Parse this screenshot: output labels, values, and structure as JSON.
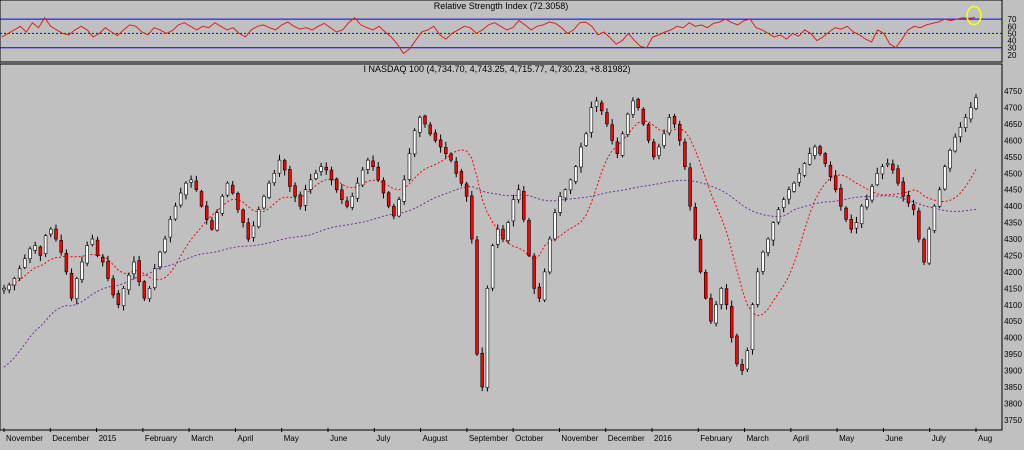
{
  "chart_data": [
    {
      "type": "line",
      "title": "Relative Strength Index (72.3058)",
      "series_name": "RSI",
      "ylim": [
        10,
        80
      ],
      "yticks": [
        "70",
        "60",
        "50",
        "40",
        "30",
        "20"
      ],
      "reference_levels": [
        70,
        30
      ],
      "midline": 50,
      "current_value": 72.3058,
      "color": "#e02020",
      "highlight_color": "#ffff00",
      "values": [
        45,
        50,
        55,
        60,
        52,
        65,
        58,
        72,
        60,
        55,
        50,
        48,
        55,
        60,
        55,
        45,
        50,
        58,
        52,
        47,
        55,
        62,
        60,
        52,
        48,
        58,
        55,
        50,
        54,
        62,
        65,
        60,
        55,
        60,
        58,
        65,
        60,
        55,
        58,
        50,
        45,
        55,
        60,
        62,
        58,
        55,
        62,
        66,
        60,
        56,
        58,
        55,
        60,
        64,
        58,
        52,
        55,
        65,
        72,
        62,
        58,
        55,
        60,
        52,
        45,
        35,
        22,
        28,
        40,
        52,
        55,
        60,
        48,
        42,
        50,
        55,
        60,
        58,
        50,
        55,
        62,
        65,
        60,
        55,
        58,
        68,
        62,
        55,
        60,
        62,
        66,
        64,
        58,
        50,
        55,
        65,
        66,
        60,
        48,
        52,
        44,
        35,
        40,
        50,
        40,
        32,
        30,
        45,
        48,
        52,
        55,
        60,
        58,
        65,
        60,
        62,
        58,
        64,
        66,
        70,
        65,
        62,
        68,
        70,
        58,
        55,
        50,
        45,
        48,
        42,
        50,
        46,
        55,
        50,
        40,
        45,
        52,
        58,
        56,
        60,
        52,
        48,
        42,
        38,
        55,
        50,
        35,
        30,
        42,
        55,
        60,
        58,
        62,
        64,
        66,
        70,
        68,
        70,
        72,
        71,
        72.3
      ]
    },
    {
      "type": "candlestick",
      "title": "I NASDAQ 100 (4,734.70, 4,743.25, 4,715.77, 4,730.23, +8.81982)",
      "ohlc_last": {
        "open": 4734.7,
        "high": 4743.25,
        "low": 4715.77,
        "close": 4730.23,
        "change": 8.81982
      },
      "ylim": [
        3725,
        4790
      ],
      "yticks": [
        4750,
        4700,
        4650,
        4600,
        4550,
        4500,
        4450,
        4400,
        4350,
        4300,
        4250,
        4200,
        4150,
        4100,
        4050,
        4000,
        3950,
        3900,
        3850,
        3800,
        3750
      ],
      "x_labels": [
        "November",
        "December",
        "2015",
        "February",
        "March",
        "April",
        "May",
        "June",
        "July",
        "August",
        "September",
        "October",
        "November",
        "December",
        "2016",
        "February",
        "March",
        "April",
        "May",
        "June",
        "July",
        "Aug"
      ],
      "up_color": "#ffffff",
      "down_color": "#ff0000",
      "wick_color": "#000000",
      "closes": [
        4150,
        4160,
        4180,
        4210,
        4240,
        4270,
        4280,
        4250,
        4310,
        4330,
        4300,
        4260,
        4200,
        4120,
        4180,
        4230,
        4280,
        4300,
        4250,
        4230,
        4180,
        4130,
        4100,
        4150,
        4190,
        4230,
        4170,
        4120,
        4150,
        4210,
        4260,
        4300,
        4360,
        4400,
        4440,
        4470,
        4480,
        4450,
        4400,
        4360,
        4330,
        4380,
        4430,
        4470,
        4440,
        4390,
        4350,
        4300,
        4340,
        4390,
        4430,
        4470,
        4500,
        4540,
        4510,
        4460,
        4430,
        4400,
        4450,
        4480,
        4500,
        4520,
        4510,
        4480,
        4450,
        4420,
        4400,
        4430,
        4470,
        4510,
        4540,
        4520,
        4480,
        4440,
        4400,
        4370,
        4420,
        4480,
        4560,
        4630,
        4670,
        4650,
        4620,
        4600,
        4580,
        4560,
        4540,
        4500,
        4470,
        4430,
        4300,
        3950,
        3850,
        4150,
        4280,
        4330,
        4300,
        4350,
        4420,
        4450,
        4360,
        4250,
        4150,
        4120,
        4200,
        4300,
        4380,
        4430,
        4450,
        4480,
        4520,
        4580,
        4620,
        4700,
        4720,
        4690,
        4650,
        4600,
        4560,
        4620,
        4680,
        4720,
        4700,
        4650,
        4600,
        4550,
        4580,
        4620,
        4670,
        4650,
        4600,
        4520,
        4400,
        4300,
        4200,
        4120,
        4050,
        4100,
        4150,
        4100,
        4000,
        3920,
        3900,
        3960,
        4100,
        4200,
        4260,
        4300,
        4350,
        4390,
        4420,
        4450,
        4470,
        4500,
        4530,
        4560,
        4580,
        4560,
        4530,
        4490,
        4450,
        4400,
        4360,
        4330,
        4350,
        4400,
        4420,
        4460,
        4500,
        4520,
        4530,
        4510,
        4470,
        4430,
        4410,
        4390,
        4300,
        4230,
        4330,
        4400,
        4450,
        4520,
        4570,
        4610,
        4640,
        4670,
        4700,
        4730.23
      ],
      "series": [
        {
          "name": "",
          "color": "#ff0000",
          "style": "dotted"
        },
        {
          "name": "",
          "color": "#7030a0",
          "style": "dotted"
        }
      ]
    }
  ]
}
